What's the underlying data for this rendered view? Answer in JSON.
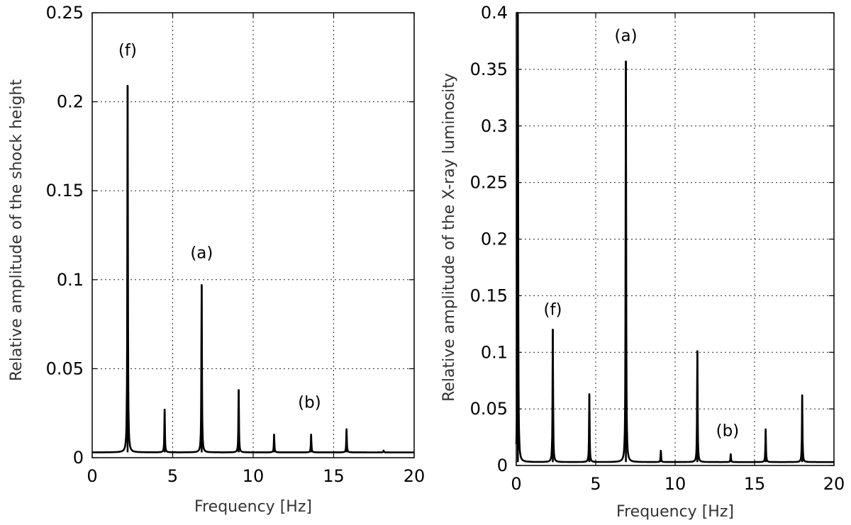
{
  "chart_data": [
    {
      "type": "line",
      "xlabel": "Frequency [Hz]",
      "ylabel": "Relative amplitude of the shock height",
      "xlim": [
        0,
        20
      ],
      "ylim": [
        0,
        0.25
      ],
      "xticks": [
        "0",
        "5",
        "10",
        "15",
        "20"
      ],
      "yticks": [
        "0",
        "0.05",
        "0.1",
        "0.15",
        "0.2",
        "0.25"
      ],
      "grid": true,
      "baseline": 0.003,
      "peaks": [
        {
          "x": 2.2,
          "y": 0.209
        },
        {
          "x": 4.5,
          "y": 0.027
        },
        {
          "x": 6.8,
          "y": 0.097
        },
        {
          "x": 9.1,
          "y": 0.038
        },
        {
          "x": 11.3,
          "y": 0.013
        },
        {
          "x": 13.6,
          "y": 0.013
        },
        {
          "x": 15.8,
          "y": 0.016
        },
        {
          "x": 18.1,
          "y": 0.004
        }
      ],
      "annotations": [
        {
          "text": "(f)",
          "x": 2.2,
          "y": 0.226
        },
        {
          "text": "(a)",
          "x": 6.8,
          "y": 0.112
        },
        {
          "text": "(b)",
          "x": 13.5,
          "y": 0.028
        }
      ]
    },
    {
      "type": "line",
      "xlabel": "Frequency [Hz]",
      "ylabel": "Relative amplitude of the X-ray luminosity",
      "xlim": [
        0,
        20
      ],
      "ylim": [
        0,
        0.4
      ],
      "xticks": [
        "0",
        "5",
        "10",
        "15",
        "20"
      ],
      "yticks": [
        "0",
        "0.05",
        "0.1",
        "0.15",
        "0.2",
        "0.25",
        "0.3",
        "0.35",
        "0.4"
      ],
      "grid": true,
      "baseline": 0.003,
      "peaks": [
        {
          "x": 0.1,
          "y": 0.4
        },
        {
          "x": 2.3,
          "y": 0.12
        },
        {
          "x": 4.6,
          "y": 0.063
        },
        {
          "x": 6.9,
          "y": 0.357
        },
        {
          "x": 9.1,
          "y": 0.013
        },
        {
          "x": 11.4,
          "y": 0.101
        },
        {
          "x": 13.5,
          "y": 0.01
        },
        {
          "x": 15.7,
          "y": 0.032
        },
        {
          "x": 18.0,
          "y": 0.062
        }
      ],
      "annotations": [
        {
          "text": "(a)",
          "x": 6.9,
          "y": 0.375
        },
        {
          "text": "(f)",
          "x": 2.3,
          "y": 0.133
        },
        {
          "text": "(b)",
          "x": 13.3,
          "y": 0.026
        }
      ]
    }
  ]
}
